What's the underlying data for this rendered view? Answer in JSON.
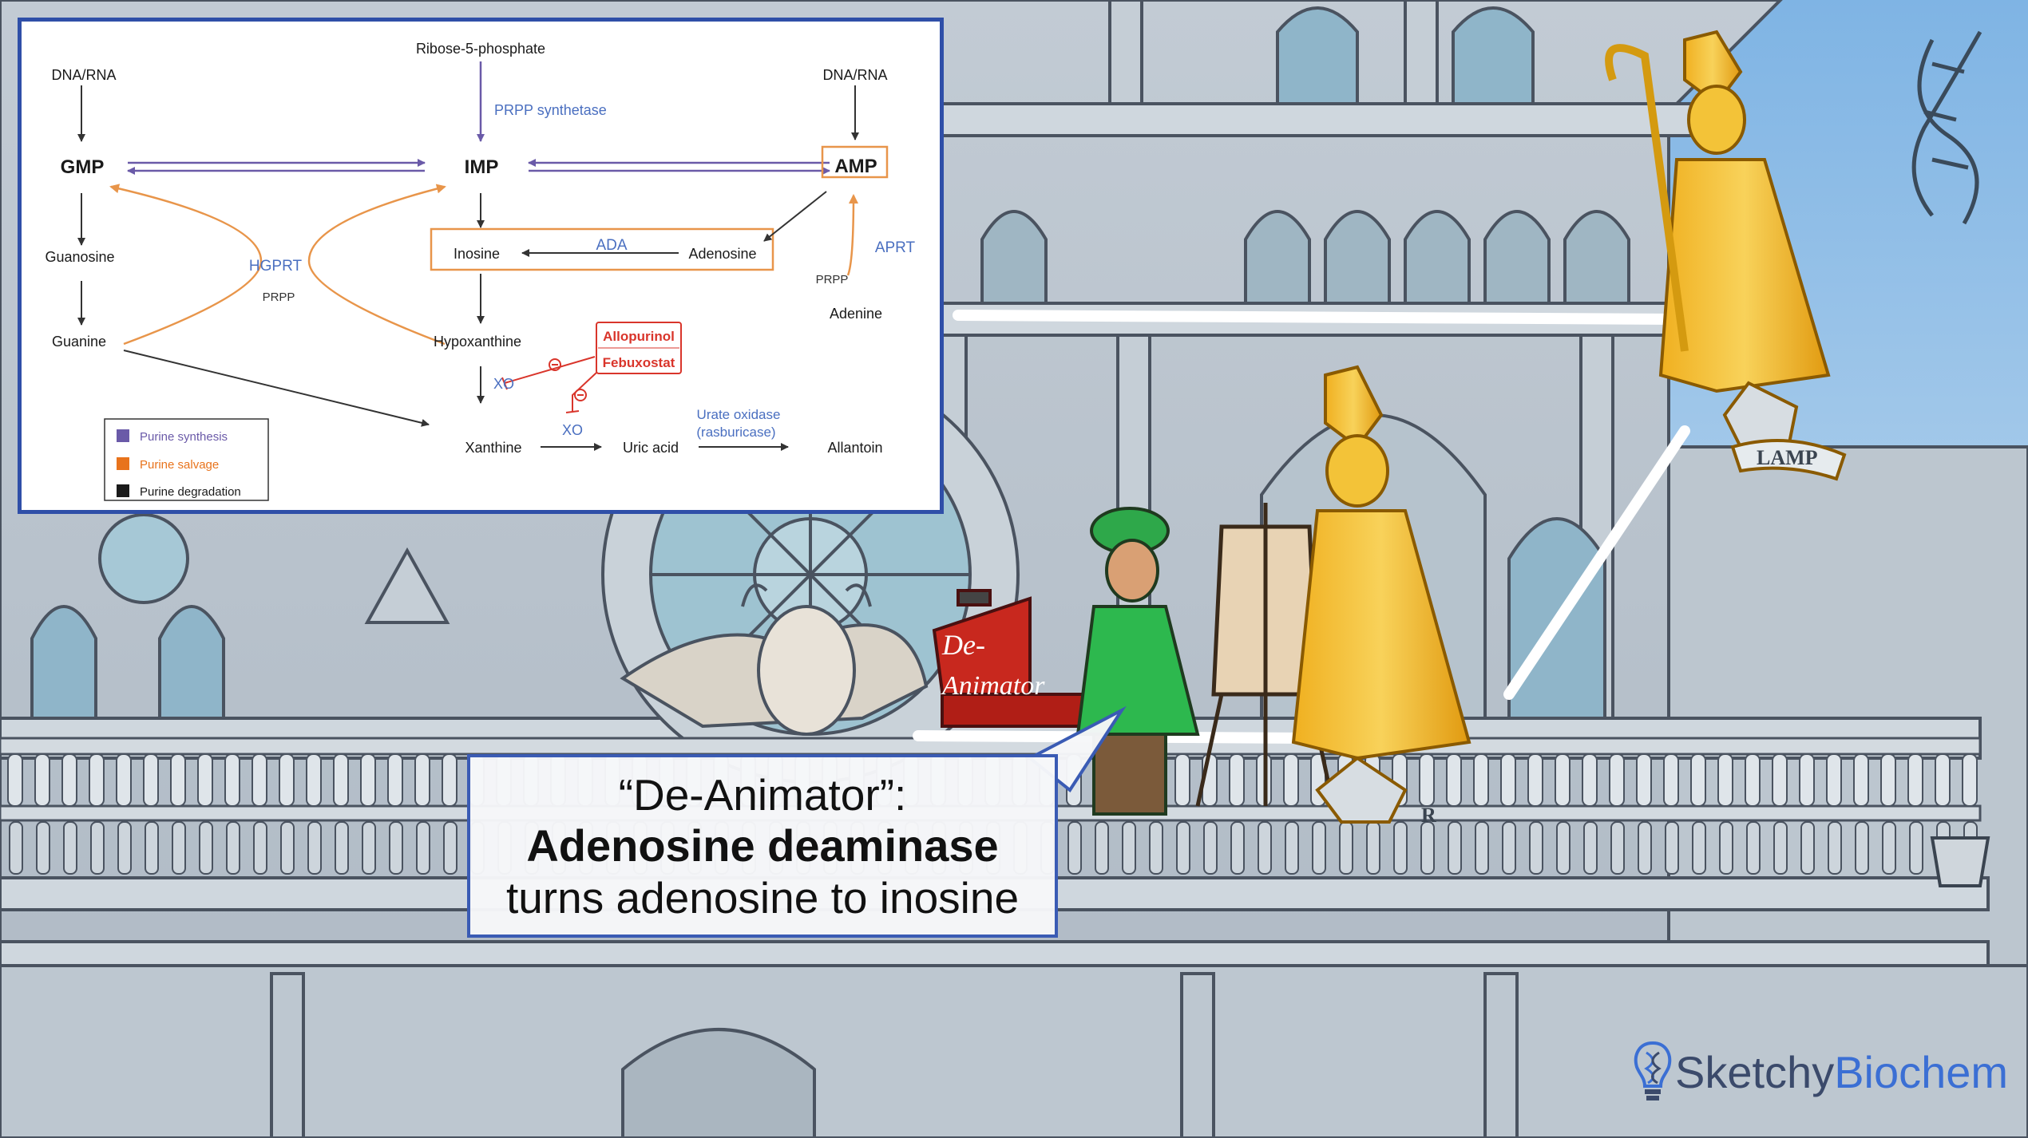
{
  "diagram": {
    "nodes": {
      "ribose": "Ribose-5-phosphate",
      "dnarna_left": "DNA/RNA",
      "dnarna_right": "DNA/RNA",
      "gmp": "GMP",
      "imp": "IMP",
      "amp": "AMP",
      "guanosine": "Guanosine",
      "guanine": "Guanine",
      "inosine": "Inosine",
      "adenosine": "Adenosine",
      "adenine": "Adenine",
      "hypoxanthine": "Hypoxanthine",
      "xanthine": "Xanthine",
      "uric_acid": "Uric acid",
      "allantoin": "Allantoin"
    },
    "enzymes": {
      "prpp_synthetase": "PRPP synthetase",
      "hgprt": "HGPRT",
      "prpp_hgprt": "PRPP",
      "ada": "ADA",
      "aprt": "APRT",
      "prpp_aprt": "PRPP",
      "xo_1": "XO",
      "xo_2": "XO",
      "urate_oxidase_1": "Urate oxidase",
      "urate_oxidase_2": "(rasburicase)"
    },
    "inhibitors": {
      "allopurinol": "Allopurinol",
      "febuxostat": "Febuxostat"
    },
    "legend": [
      {
        "label": "Purine synthesis",
        "color": "#6a5aa8"
      },
      {
        "label": "Purine salvage",
        "color": "#e8731c"
      },
      {
        "label": "Purine degradation",
        "color": "#1a1a1a"
      }
    ],
    "colors": {
      "synthesis": "#6a5aa8",
      "salvage": "#e8954a",
      "degradation": "#333333",
      "enzyme_text": "#4a6fc0",
      "inhibitor": "#d9352b",
      "highlight_box": "#f0a03c"
    }
  },
  "caption": {
    "line1": "“De-Animator”:",
    "line2": "Adenosine deaminase",
    "line3": "turns adenosine to inosine"
  },
  "scene": {
    "sign_1": "De-",
    "sign_2": "Animator",
    "banner": "LAMP",
    "shield_letter": "R"
  },
  "logo": {
    "part1": "Sketchy",
    "part2": "Biochem",
    "icon": "dna-bulb-icon"
  }
}
